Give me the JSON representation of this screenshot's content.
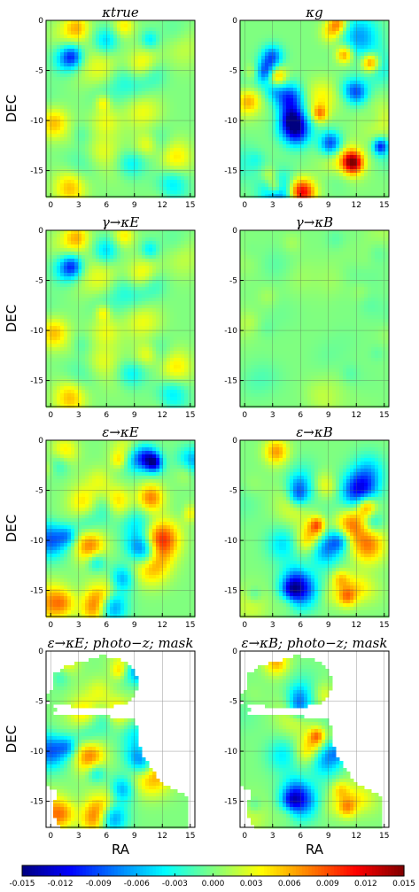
{
  "chart_data": {
    "type": "heatmap",
    "layout": "4 rows x 2 columns of sky maps sharing one horizontal colorbar",
    "colormap": "jet",
    "colorbar": {
      "range": [
        -0.015,
        0.015
      ],
      "ticks": [
        "-0.015",
        "-0.012",
        "-0.009",
        "-0.006",
        "-0.003",
        "0.000",
        "0.003",
        "0.006",
        "0.009",
        "0.012",
        "0.015"
      ],
      "placement": "bottom"
    },
    "x_axis": {
      "label": "RA",
      "range": [
        -0.5,
        15.5
      ],
      "ticks": [
        "0",
        "3",
        "6",
        "9",
        "12",
        "15"
      ]
    },
    "y_axis": {
      "label": "DEC",
      "range": [
        -17.6,
        0
      ],
      "ticks": [
        "0",
        "-5",
        "-10",
        "-15"
      ]
    },
    "grid": true,
    "panels": [
      {
        "title": "κtrue",
        "amplitude": 0.007,
        "seed": 3,
        "masked": false
      },
      {
        "title": "κg",
        "amplitude": 0.013,
        "seed": 7,
        "masked": false
      },
      {
        "title": "γ→κE",
        "amplitude": 0.007,
        "seed": 3,
        "masked": false
      },
      {
        "title": "γ→κB",
        "amplitude": 0.0015,
        "seed": 11,
        "masked": false
      },
      {
        "title": "ε→κE",
        "amplitude": 0.011,
        "seed": 13,
        "masked": false
      },
      {
        "title": "ε→κB",
        "amplitude": 0.01,
        "seed": 17,
        "masked": false
      },
      {
        "title": "ε→κE; photo−z; mask",
        "amplitude": 0.011,
        "seed": 13,
        "masked": true
      },
      {
        "title": "ε→κB; photo−z; mask",
        "amplitude": 0.009,
        "seed": 17,
        "masked": true
      }
    ]
  }
}
